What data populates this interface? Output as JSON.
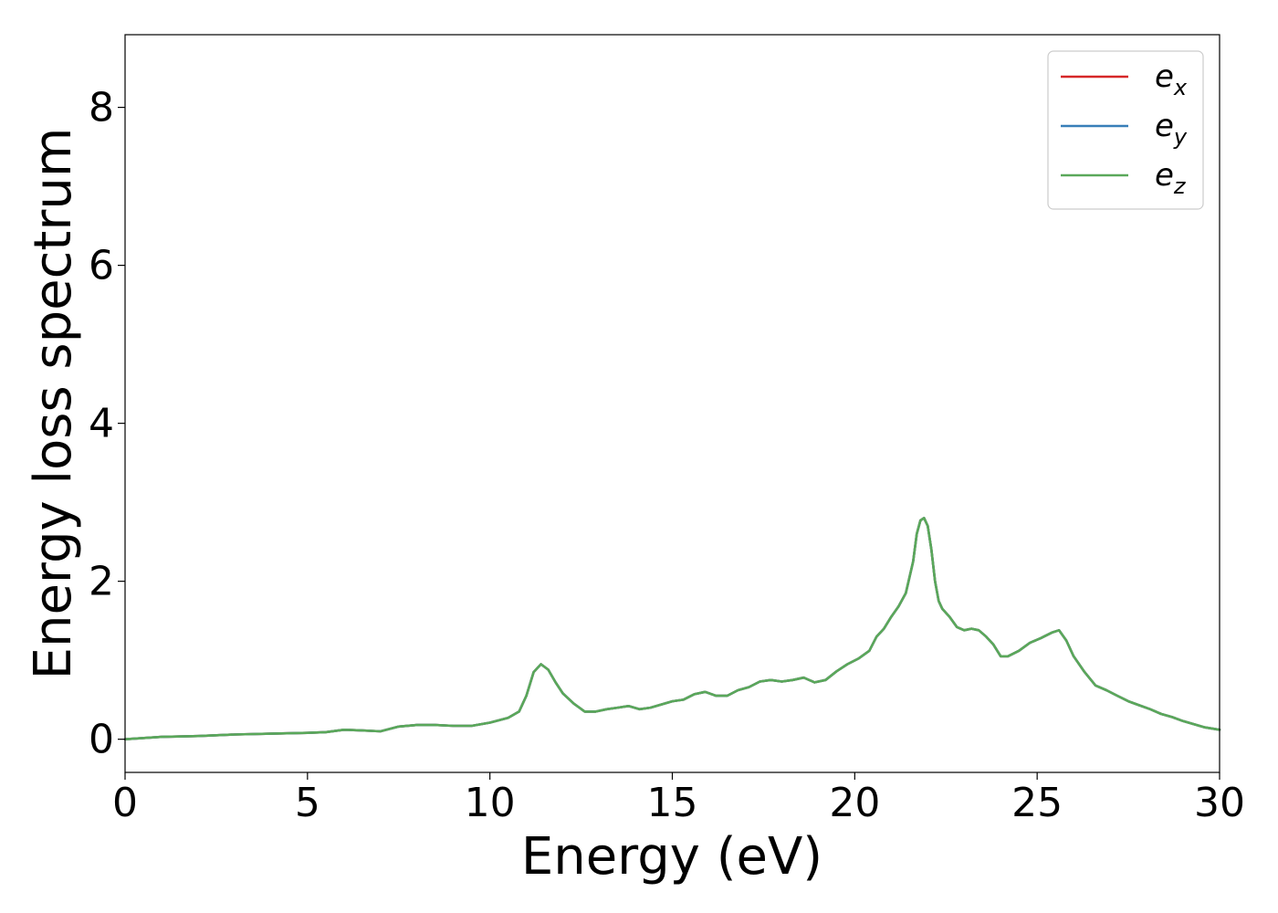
{
  "chart_data": {
    "type": "line",
    "title": "",
    "xlabel": "Energy (eV)",
    "ylabel": "Energy loss spectrum",
    "xlim": [
      0,
      30
    ],
    "ylim": [
      -0.42,
      8.92
    ],
    "xticks": [
      0,
      5,
      10,
      15,
      20,
      25,
      30
    ],
    "yticks": [
      0,
      2,
      4,
      6,
      8
    ],
    "xtick_labels": [
      "0",
      "5",
      "10",
      "15",
      "20",
      "25",
      "30"
    ],
    "ytick_labels": [
      "0",
      "2",
      "4",
      "6",
      "8"
    ],
    "grid": false,
    "legend_position": "top-right",
    "x": [
      0,
      1,
      2,
      3,
      4,
      5,
      5.5,
      6,
      6.5,
      7,
      7.5,
      8,
      8.5,
      9,
      9.5,
      10,
      10.5,
      10.8,
      11,
      11.2,
      11.4,
      11.6,
      11.8,
      12,
      12.3,
      12.6,
      12.9,
      13.2,
      13.5,
      13.8,
      14.1,
      14.4,
      14.7,
      15,
      15.3,
      15.6,
      15.9,
      16.2,
      16.5,
      16.8,
      17.1,
      17.4,
      17.7,
      18,
      18.3,
      18.6,
      18.9,
      19.2,
      19.5,
      19.8,
      20.1,
      20.4,
      20.6,
      20.8,
      21,
      21.2,
      21.4,
      21.6,
      21.7,
      21.8,
      21.9,
      22,
      22.1,
      22.2,
      22.3,
      22.4,
      22.6,
      22.8,
      23,
      23.2,
      23.4,
      23.6,
      23.8,
      24,
      24.2,
      24.5,
      24.8,
      25.1,
      25.4,
      25.6,
      25.8,
      26,
      26.3,
      26.6,
      26.9,
      27.2,
      27.5,
      27.8,
      28.1,
      28.4,
      28.7,
      29,
      29.3,
      29.6,
      30
    ],
    "series": [
      {
        "name": "e_x",
        "legend_base": "e",
        "legend_sub": "x",
        "color": "#d62728",
        "values": [
          0.0,
          0.03,
          0.04,
          0.06,
          0.07,
          0.08,
          0.09,
          0.12,
          0.11,
          0.1,
          0.16,
          0.18,
          0.18,
          0.17,
          0.17,
          0.21,
          0.27,
          0.35,
          0.55,
          0.85,
          0.95,
          0.88,
          0.72,
          0.58,
          0.45,
          0.35,
          0.35,
          0.38,
          0.4,
          0.42,
          0.38,
          0.4,
          0.44,
          0.48,
          0.5,
          0.57,
          0.6,
          0.55,
          0.55,
          0.62,
          0.66,
          0.73,
          0.75,
          0.73,
          0.75,
          0.78,
          0.72,
          0.75,
          0.86,
          0.95,
          1.02,
          1.12,
          1.3,
          1.4,
          1.55,
          1.68,
          1.85,
          2.25,
          2.6,
          2.77,
          2.8,
          2.7,
          2.4,
          2.0,
          1.75,
          1.65,
          1.55,
          1.42,
          1.38,
          1.4,
          1.38,
          1.3,
          1.2,
          1.05,
          1.05,
          1.12,
          1.22,
          1.28,
          1.35,
          1.38,
          1.25,
          1.05,
          0.85,
          0.68,
          0.62,
          0.55,
          0.48,
          0.43,
          0.38,
          0.32,
          0.28,
          0.23,
          0.19,
          0.15,
          0.12
        ]
      },
      {
        "name": "e_y",
        "legend_base": "e",
        "legend_sub": "y",
        "color": "#377eb8",
        "values": [
          0.0,
          0.03,
          0.04,
          0.06,
          0.07,
          0.08,
          0.09,
          0.12,
          0.11,
          0.1,
          0.16,
          0.18,
          0.18,
          0.17,
          0.17,
          0.21,
          0.27,
          0.35,
          0.55,
          0.85,
          0.95,
          0.88,
          0.72,
          0.58,
          0.45,
          0.35,
          0.35,
          0.38,
          0.4,
          0.42,
          0.38,
          0.4,
          0.44,
          0.48,
          0.5,
          0.57,
          0.6,
          0.55,
          0.55,
          0.62,
          0.66,
          0.73,
          0.75,
          0.73,
          0.75,
          0.78,
          0.72,
          0.75,
          0.86,
          0.95,
          1.02,
          1.12,
          1.3,
          1.4,
          1.55,
          1.68,
          1.85,
          2.25,
          2.6,
          2.77,
          2.8,
          2.7,
          2.4,
          2.0,
          1.75,
          1.65,
          1.55,
          1.42,
          1.38,
          1.4,
          1.38,
          1.3,
          1.2,
          1.05,
          1.05,
          1.12,
          1.22,
          1.28,
          1.35,
          1.38,
          1.25,
          1.05,
          0.85,
          0.68,
          0.62,
          0.55,
          0.48,
          0.43,
          0.38,
          0.32,
          0.28,
          0.23,
          0.19,
          0.15,
          0.12
        ]
      },
      {
        "name": "e_z",
        "legend_base": "e",
        "legend_sub": "z",
        "color": "#5aa85a",
        "values": [
          0.0,
          0.03,
          0.04,
          0.06,
          0.07,
          0.08,
          0.09,
          0.12,
          0.11,
          0.1,
          0.16,
          0.18,
          0.18,
          0.17,
          0.17,
          0.21,
          0.27,
          0.35,
          0.55,
          0.85,
          0.95,
          0.88,
          0.72,
          0.58,
          0.45,
          0.35,
          0.35,
          0.38,
          0.4,
          0.42,
          0.38,
          0.4,
          0.44,
          0.48,
          0.5,
          0.57,
          0.6,
          0.55,
          0.55,
          0.62,
          0.66,
          0.73,
          0.75,
          0.73,
          0.75,
          0.78,
          0.72,
          0.75,
          0.86,
          0.95,
          1.02,
          1.12,
          1.3,
          1.4,
          1.55,
          1.68,
          1.85,
          2.25,
          2.6,
          2.77,
          2.8,
          2.7,
          2.4,
          2.0,
          1.75,
          1.65,
          1.55,
          1.42,
          1.38,
          1.4,
          1.38,
          1.3,
          1.2,
          1.05,
          1.05,
          1.12,
          1.22,
          1.28,
          1.35,
          1.38,
          1.25,
          1.05,
          0.85,
          0.68,
          0.62,
          0.55,
          0.48,
          0.43,
          0.38,
          0.32,
          0.28,
          0.23,
          0.19,
          0.15,
          0.12
        ]
      }
    ]
  }
}
